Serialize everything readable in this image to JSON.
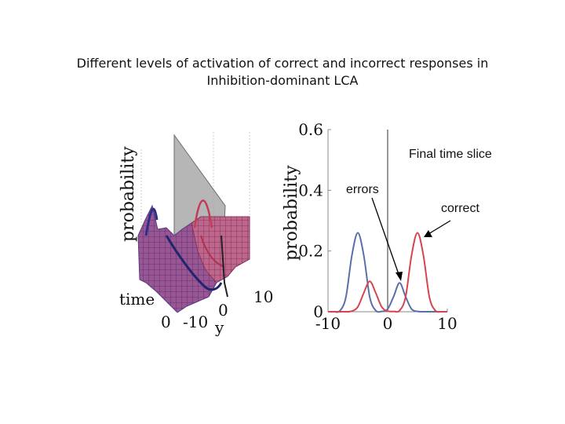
{
  "title": {
    "line1": "Different levels of activation of correct and incorrect responses in",
    "line2": "Inhibition-dominant LCA"
  },
  "surface_plot": {
    "ylabel": "probability",
    "xlabel_time": "time",
    "xlabel_y": "y",
    "tick_labels": [
      "0",
      "-10",
      "0",
      "10"
    ]
  },
  "annotations": {
    "final_slice": "Final time slice",
    "errors": "errors",
    "correct": "correct"
  },
  "colors": {
    "series_blue": "#5a6fa8",
    "series_red": "#d6454f",
    "surface_red": "#c03a55",
    "surface_blue": "#3b3f9c"
  },
  "chart_data": {
    "type": "line",
    "title": "",
    "xlabel": "",
    "ylabel": "probability",
    "xlim": [
      -10,
      10
    ],
    "ylim": [
      0,
      0.6
    ],
    "xticks": [
      -10,
      0,
      10
    ],
    "yticks": [
      0,
      0.2,
      0.4,
      0.6
    ],
    "xtick_labels": [
      "-10",
      "0",
      "10"
    ],
    "ytick_labels": [
      "0",
      "0.2",
      "0.4",
      "0.6"
    ],
    "reference_line_x": 0,
    "series": [
      {
        "name": "blue",
        "x": [
          -10,
          -9,
          -8,
          -7,
          -6,
          -5,
          -4,
          -3,
          -2,
          -1,
          0,
          1,
          2,
          3,
          4,
          5,
          6,
          7,
          8,
          9,
          10
        ],
        "y": [
          0,
          0,
          0.003,
          0.048,
          0.185,
          0.26,
          0.185,
          0.048,
          0.004,
          0.001,
          0.009,
          0.05,
          0.095,
          0.05,
          0.009,
          0.001,
          0,
          0,
          0,
          0,
          0
        ]
      },
      {
        "name": "red",
        "x": [
          -10,
          -9,
          -8,
          -7,
          -6,
          -5,
          -4,
          -3,
          -2,
          -1,
          0,
          1,
          2,
          3,
          4,
          5,
          6,
          7,
          8,
          9,
          10
        ],
        "y": [
          0,
          0,
          0,
          0,
          0.002,
          0.016,
          0.062,
          0.1,
          0.062,
          0.016,
          0.002,
          0.001,
          0.004,
          0.048,
          0.185,
          0.26,
          0.185,
          0.048,
          0.004,
          0,
          0
        ]
      }
    ]
  }
}
